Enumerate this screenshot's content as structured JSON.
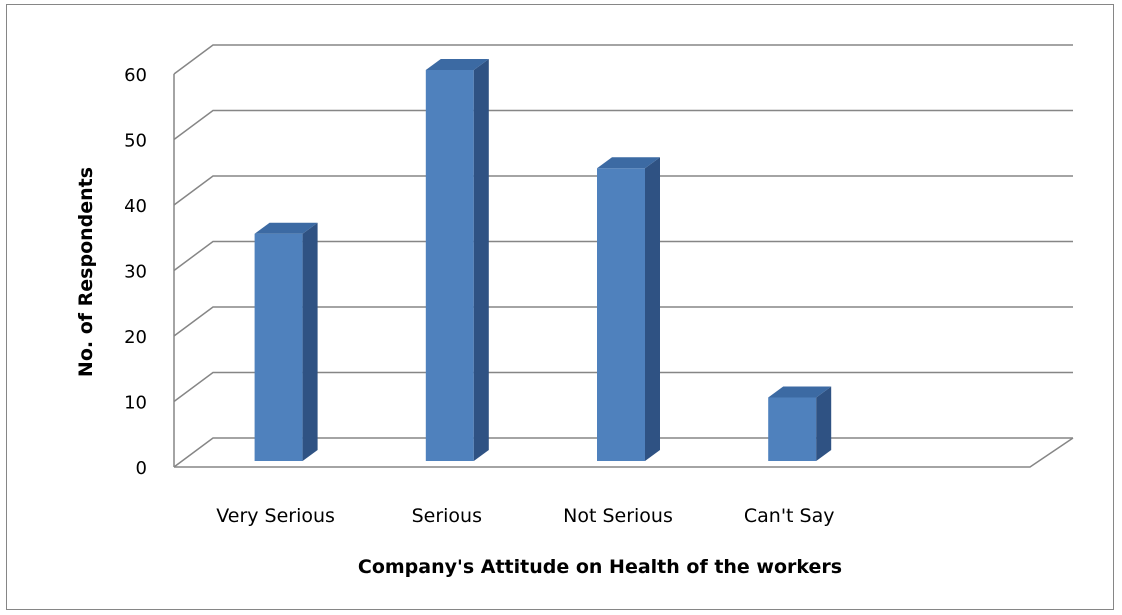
{
  "chart_data": {
    "type": "bar",
    "style": "3d-column",
    "categories": [
      "Very Serious",
      "Serious",
      "Not Serious",
      "Can't Say"
    ],
    "values": [
      35,
      60,
      45,
      10
    ],
    "title": "",
    "xlabel": "Company's Attitude on Health of the workers",
    "ylabel": "No. of Respondents",
    "ylim": [
      0,
      60
    ],
    "yticks": [
      0,
      10,
      20,
      30,
      40,
      50,
      60
    ],
    "grid": true,
    "legend": "none",
    "colors": {
      "bar_front": "#4f81bd",
      "bar_side": "#2f5283",
      "bar_top": "#3c6aa3",
      "gridline": "#868686",
      "axis_line": "#868686"
    }
  }
}
